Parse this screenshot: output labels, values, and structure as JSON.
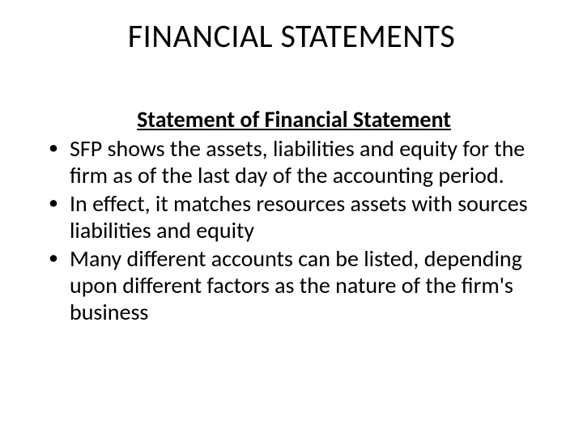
{
  "slide": {
    "title": "FINANCIAL STATEMENTS",
    "subheading": "Statement of Financial Statement",
    "bullets": [
      "SFP shows the assets, liabilities and equity for the firm as of the last day of the accounting period.",
      "In effect, it matches resources assets with sources liabilities and equity",
      "Many different accounts can be listed, depending upon different factors as the nature of the firm's business"
    ]
  },
  "style": {
    "background_color": "#ffffff",
    "text_color": "#000000",
    "title_fontsize": 40,
    "subheading_fontsize": 28,
    "body_fontsize": 28,
    "font_family": "Calibri"
  }
}
